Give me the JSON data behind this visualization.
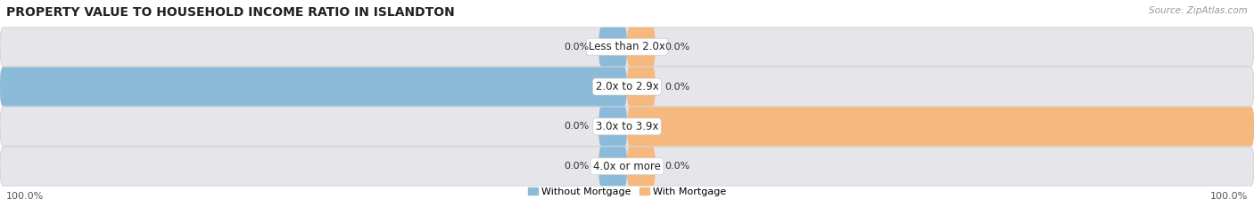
{
  "title": "PROPERTY VALUE TO HOUSEHOLD INCOME RATIO IN ISLANDTON",
  "source": "Source: ZipAtlas.com",
  "categories": [
    "Less than 2.0x",
    "2.0x to 2.9x",
    "3.0x to 3.9x",
    "4.0x or more"
  ],
  "without_mortgage": [
    0.0,
    100.0,
    0.0,
    0.0
  ],
  "with_mortgage": [
    0.0,
    0.0,
    100.0,
    0.0
  ],
  "bar_color_without": "#8bbbd9",
  "bar_color_with": "#f5b97f",
  "bar_bg_color": "#e5e5ea",
  "fig_bg_color": "#ffffff",
  "max_val": 100.0,
  "legend_without": "Without Mortgage",
  "legend_with": "With Mortgage",
  "title_fontsize": 10,
  "source_fontsize": 7.5,
  "label_fontsize": 8,
  "cat_fontsize": 8.5,
  "figsize": [
    14.06,
    2.33
  ],
  "dpi": 100
}
